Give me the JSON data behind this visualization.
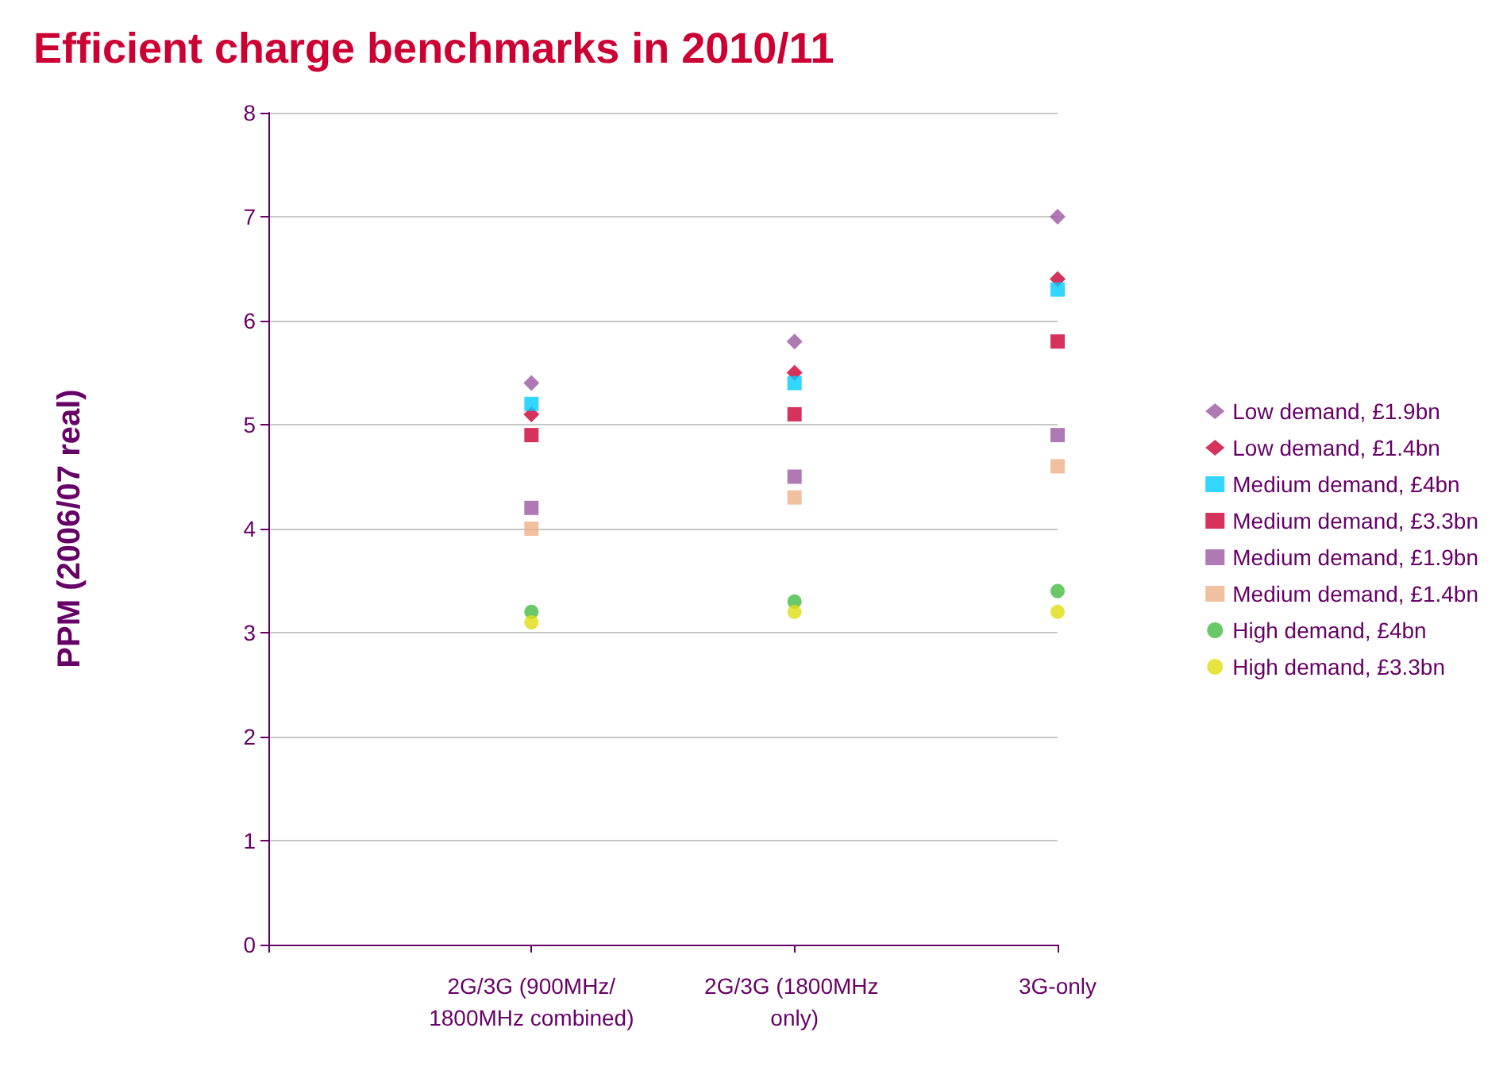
{
  "chart_data": {
    "type": "scatter",
    "title": "Efficient charge benchmarks in 2010/11",
    "ylabel": "PPM (2006/07 real)",
    "categories": [
      null,
      "2G/3G (900MHz/1800MHz combined)",
      "2G/3G (1800MHz only)",
      "3G-only"
    ],
    "ylim": [
      0,
      8
    ],
    "yticks": [
      0,
      1,
      2,
      3,
      4,
      5,
      6,
      7,
      8
    ],
    "grid": "y",
    "legend": "right",
    "series": [
      {
        "name": "Low demand, £1.9bn",
        "color": "#9b59a0",
        "marker": "diamond",
        "values": [
          null,
          5.4,
          5.8,
          7.0
        ]
      },
      {
        "name": "Low demand, £1.4bn",
        "color": "#cc0033",
        "marker": "diamond",
        "values": [
          null,
          5.1,
          5.5,
          6.4
        ]
      },
      {
        "name": "Medium demand, £4bn",
        "color": "#00ccff",
        "marker": "square",
        "values": [
          null,
          5.2,
          5.4,
          6.3
        ]
      },
      {
        "name": "Medium demand, £3.3bn",
        "color": "#cc0033",
        "marker": "square",
        "values": [
          null,
          4.9,
          5.1,
          5.8
        ]
      },
      {
        "name": "Medium demand, £1.9bn",
        "color": "#9b59a0",
        "marker": "square",
        "values": [
          null,
          4.2,
          4.5,
          4.9
        ]
      },
      {
        "name": "Medium demand, £1.4bn",
        "color": "#eeb088",
        "marker": "square",
        "values": [
          null,
          4.0,
          4.3,
          4.6
        ]
      },
      {
        "name": "High demand, £4bn",
        "color": "#44bb44",
        "marker": "circle",
        "values": [
          null,
          3.2,
          3.3,
          3.4
        ]
      },
      {
        "name": "High demand, £3.3bn",
        "color": "#e0dd10",
        "marker": "circle",
        "values": [
          null,
          3.1,
          3.2,
          3.2
        ]
      }
    ]
  }
}
